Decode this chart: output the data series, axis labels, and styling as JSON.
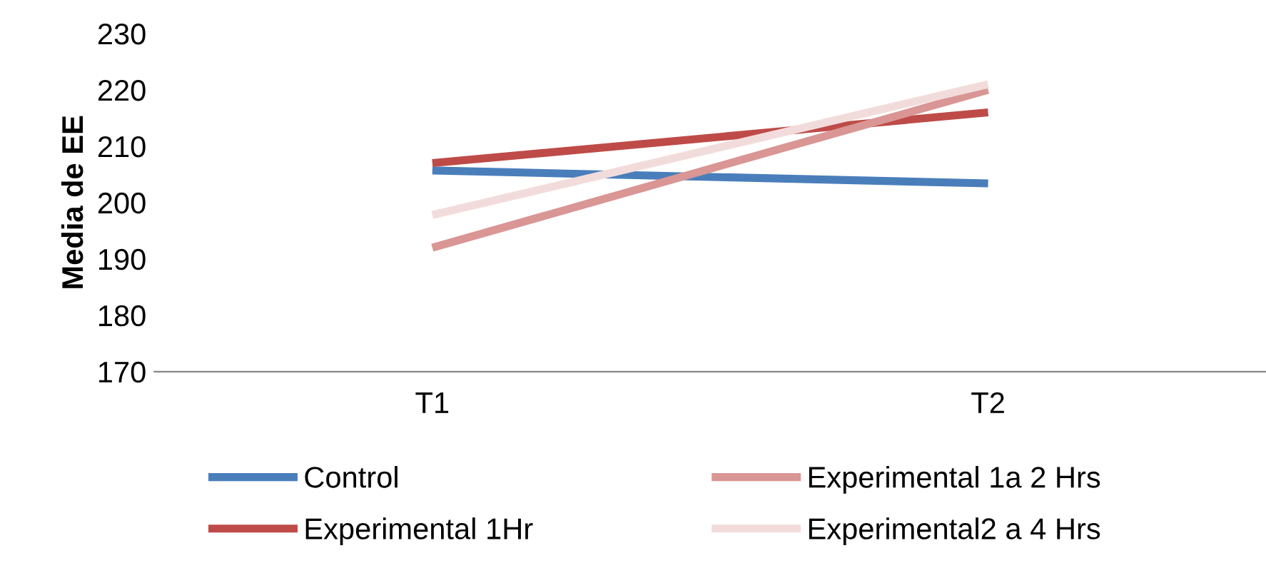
{
  "chart_data": {
    "type": "line",
    "ylabel": "Media de EE",
    "categories": [
      "T1",
      "T2"
    ],
    "series": [
      {
        "name": "Control",
        "color": "#4a7ebb",
        "values": [
          205.7,
          203.4
        ]
      },
      {
        "name": "Experimental 1Hr",
        "color": "#be4b48",
        "values": [
          207,
          216
        ]
      },
      {
        "name": "Experimental 1a 2 Hrs",
        "color": "#d99694",
        "values": [
          192,
          220
        ]
      },
      {
        "name": "Experimental2 a 4 Hrs",
        "color": "#f2dcdb",
        "values": [
          197.8,
          221
        ]
      }
    ],
    "ylim": [
      170,
      230
    ],
    "yticks": [
      170,
      180,
      190,
      200,
      210,
      220,
      230
    ],
    "grid": false,
    "legend": "bottom",
    "marker": "none",
    "line_style": "solid"
  }
}
